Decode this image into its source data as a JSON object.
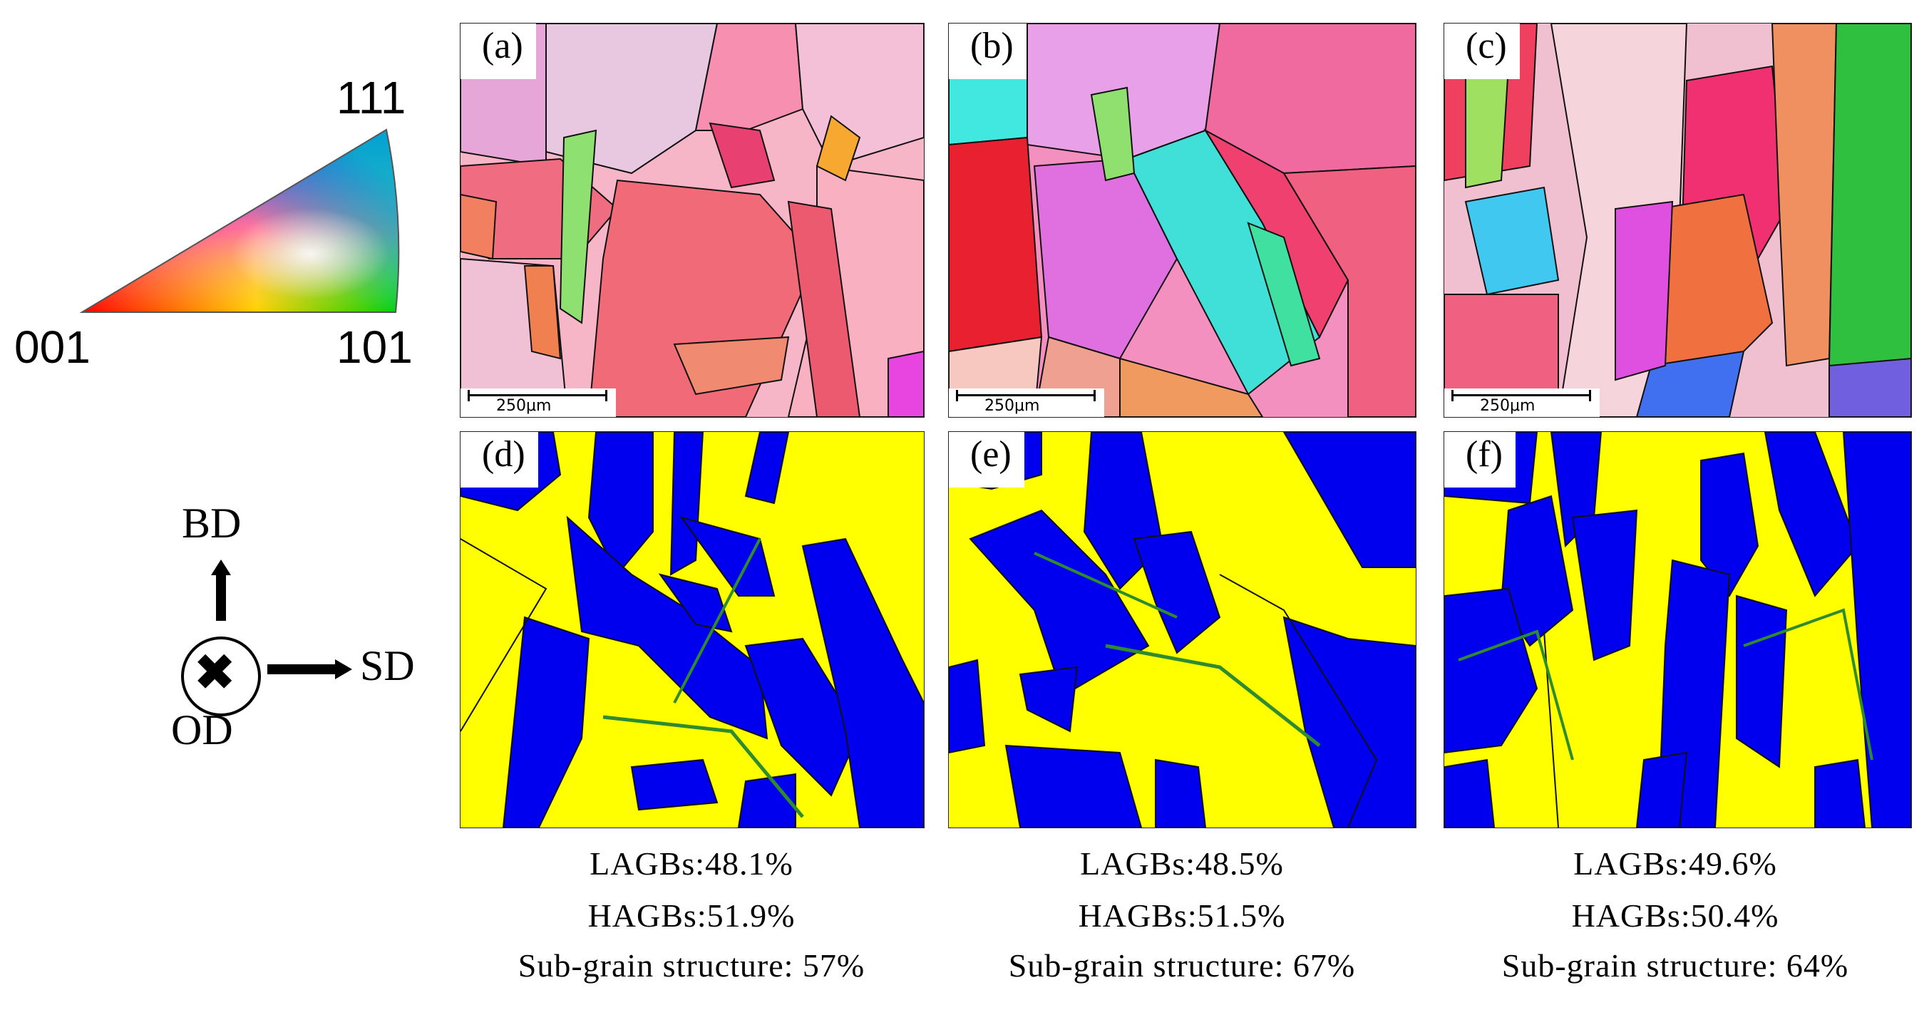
{
  "ipf_legend": {
    "corner_001": "001",
    "corner_101": "101",
    "corner_111": "111"
  },
  "coordinate_system": {
    "bd": "BD",
    "sd": "SD",
    "od": "OD"
  },
  "panels": [
    {
      "label": "(a)",
      "scale": "250μm"
    },
    {
      "label": "(b)",
      "scale": "250μm"
    },
    {
      "label": "(c)",
      "scale": "250μm"
    },
    {
      "label": "(d)"
    },
    {
      "label": "(e)"
    },
    {
      "label": "(f)"
    }
  ],
  "stats": [
    {
      "lagb": "LAGBs:48.1%",
      "hagb": "HAGBs:51.9%",
      "subgrain": "Sub-grain structure: 57%"
    },
    {
      "lagb": "LAGBs:48.5%",
      "hagb": "HAGBs:51.5%",
      "subgrain": "Sub-grain structure: 67%"
    },
    {
      "lagb": "LAGBs:49.6%",
      "hagb": "HAGBs:50.4%",
      "subgrain": "Sub-grain structure: 64%"
    }
  ],
  "colors": {
    "sub_grain": "#0000ee",
    "recrystallized": "#ffff00",
    "boundary_green": "#2e8b2e"
  }
}
